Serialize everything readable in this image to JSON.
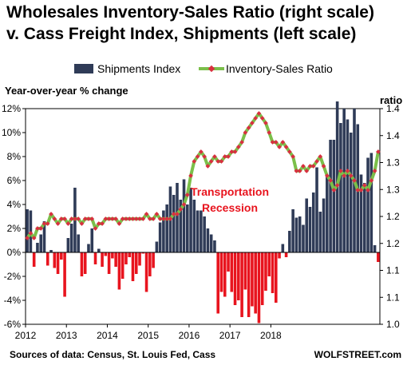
{
  "chart_data": {
    "type": "bar",
    "title": "Wholesales Inventory-Sales Ratio (right scale)",
    "subtitle": "v. Cass Freight Index, Shipments (left scale)",
    "ylabel_left": "Year-over-year % change",
    "ylabel_right": "ratio",
    "ylim_left": [
      -6,
      12
    ],
    "yticks_left": [
      "-6%",
      "-4%",
      "-2%",
      "0%",
      "2%",
      "4%",
      "6%",
      "8%",
      "10%",
      "12%"
    ],
    "ylim_right": [
      1.0,
      1.45
    ],
    "yticks_right": [
      "1.0",
      "1.1",
      "1.1",
      "1.2",
      "1.2",
      "1.3",
      "1.3",
      "1.4",
      "1.4"
    ],
    "x_labels": [
      "2012",
      "2013",
      "2014",
      "2015",
      "2016",
      "2017",
      "2018"
    ],
    "x_start_year": 2012,
    "months_per_label": 12,
    "grid": false,
    "legend_position": "top",
    "annotation": {
      "line1": "Transportation",
      "line2": "Recession"
    },
    "source": "Sources of data: Census, St. Louis Fed, Cass",
    "brand": "WOLFSTREET.com",
    "colors": {
      "positive_bar": "#2f3b57",
      "negative_bar": "#e8141e",
      "ratio_line": "#7bbf4a",
      "ratio_marker": "#d93040",
      "annotation": "#e8141e"
    },
    "series": [
      {
        "name": "Shipments Index",
        "type": "bar",
        "axis": "left",
        "values": [
          3.6,
          3.5,
          -1.2,
          0.8,
          1.5,
          2.6,
          -1.1,
          0.2,
          -1.3,
          -1.8,
          -0.6,
          -3.7,
          1.2,
          2.4,
          5.4,
          1.5,
          -2.0,
          -1.8,
          0.7,
          2.0,
          -1.0,
          0.3,
          -1.2,
          -0.3,
          -1.8,
          -0.5,
          -1.2,
          -3.1,
          -2.2,
          -1.0,
          -0.4,
          -2.4,
          -1.8,
          -1.1,
          -0.1,
          -3.3,
          -2.0,
          -1.3,
          0.9,
          2.5,
          3.5,
          4.0,
          5.5,
          4.8,
          5.8,
          4.4,
          6.1,
          4.0,
          5.4,
          4.4,
          3.5,
          3.5,
          3.0,
          2.0,
          1.5,
          1.0,
          -5.1,
          -3.3,
          -3.7,
          -1.6,
          -3.3,
          -4.4,
          -4.0,
          -5.4,
          -3.1,
          -5.4,
          -4.5,
          -5.1,
          -5.9,
          -4.4,
          -3.2,
          -2.0,
          -3.4,
          -4.2,
          -0.5,
          0.7,
          -0.4,
          1.8,
          3.6,
          2.9,
          3.0,
          2.3,
          4.5,
          3.8,
          5.0,
          7.1,
          3.4,
          4.5,
          6.3,
          9.4,
          9.4,
          12.6,
          10.8,
          12.0,
          11.1,
          10.0,
          12.0,
          10.7,
          6.5,
          5.8,
          7.9,
          8.3,
          0.6,
          -0.8
        ]
      },
      {
        "name": "Inventory-Sales Ratio",
        "type": "line",
        "axis": "right",
        "values": [
          1.18,
          1.19,
          1.18,
          1.2,
          1.2,
          1.21,
          1.21,
          1.23,
          1.22,
          1.21,
          1.22,
          1.22,
          1.21,
          1.22,
          1.22,
          1.22,
          1.21,
          1.22,
          1.22,
          1.22,
          1.2,
          1.21,
          1.21,
          1.22,
          1.22,
          1.22,
          1.22,
          1.21,
          1.22,
          1.22,
          1.22,
          1.22,
          1.22,
          1.22,
          1.22,
          1.23,
          1.22,
          1.22,
          1.23,
          1.22,
          1.22,
          1.22,
          1.22,
          1.23,
          1.23,
          1.24,
          1.25,
          1.27,
          1.31,
          1.34,
          1.35,
          1.36,
          1.35,
          1.33,
          1.34,
          1.35,
          1.34,
          1.34,
          1.35,
          1.35,
          1.36,
          1.36,
          1.37,
          1.38,
          1.4,
          1.41,
          1.42,
          1.43,
          1.44,
          1.43,
          1.42,
          1.4,
          1.38,
          1.38,
          1.37,
          1.38,
          1.37,
          1.36,
          1.35,
          1.32,
          1.32,
          1.33,
          1.32,
          1.33,
          1.33,
          1.34,
          1.35,
          1.33,
          1.31,
          1.3,
          1.28,
          1.29,
          1.32,
          1.31,
          1.32,
          1.31,
          1.3,
          1.28,
          1.28,
          1.29,
          1.28,
          1.3,
          1.32,
          1.36
        ]
      }
    ]
  }
}
